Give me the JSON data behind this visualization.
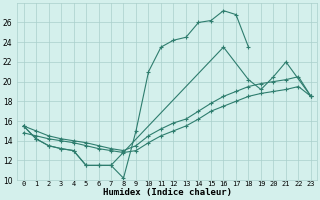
{
  "xlabel": "Humidex (Indice chaleur)",
  "line1_x": [
    0,
    1,
    2,
    3,
    4,
    5,
    6,
    7,
    8,
    9,
    10,
    11,
    12,
    13,
    14,
    15,
    16,
    17,
    18
  ],
  "line1_y": [
    15.5,
    14.2,
    13.5,
    13.2,
    13.0,
    11.5,
    11.5,
    11.5,
    10.2,
    15.0,
    21.0,
    23.5,
    24.2,
    24.5,
    26.0,
    26.2,
    27.2,
    26.8,
    23.5
  ],
  "line2_x": [
    0,
    1,
    2,
    3,
    4,
    5,
    6,
    7,
    16,
    18,
    19,
    20,
    21,
    23
  ],
  "line2_y": [
    15.5,
    14.2,
    13.5,
    13.2,
    13.0,
    11.5,
    11.5,
    11.5,
    23.5,
    20.2,
    19.2,
    20.5,
    22.0,
    18.5
  ],
  "line3_x": [
    0,
    1,
    2,
    3,
    4,
    5,
    6,
    7,
    8,
    9,
    10,
    11,
    12,
    13,
    14,
    15,
    16,
    17,
    18,
    19,
    20,
    21,
    22,
    23
  ],
  "line3_y": [
    15.5,
    15.0,
    14.5,
    14.2,
    14.0,
    13.8,
    13.5,
    13.2,
    13.0,
    13.5,
    14.5,
    15.2,
    15.8,
    16.2,
    17.0,
    17.8,
    18.5,
    19.0,
    19.5,
    19.8,
    20.0,
    20.2,
    20.5,
    18.5
  ],
  "line4_x": [
    0,
    1,
    2,
    3,
    4,
    5,
    6,
    7,
    8,
    9,
    10,
    11,
    12,
    13,
    14,
    15,
    16,
    17,
    18,
    19,
    20,
    21,
    22,
    23
  ],
  "line4_y": [
    14.8,
    14.5,
    14.2,
    14.0,
    13.8,
    13.5,
    13.2,
    13.0,
    12.8,
    13.0,
    13.8,
    14.5,
    15.0,
    15.5,
    16.2,
    17.0,
    17.5,
    18.0,
    18.5,
    18.8,
    19.0,
    19.2,
    19.5,
    18.5
  ],
  "ylim": [
    10,
    28
  ],
  "yticks": [
    10,
    12,
    14,
    16,
    18,
    20,
    22,
    24,
    26
  ],
  "line_color": "#2e7d6e",
  "bg_color": "#d4f0ec",
  "grid_color": "#aacfcb"
}
